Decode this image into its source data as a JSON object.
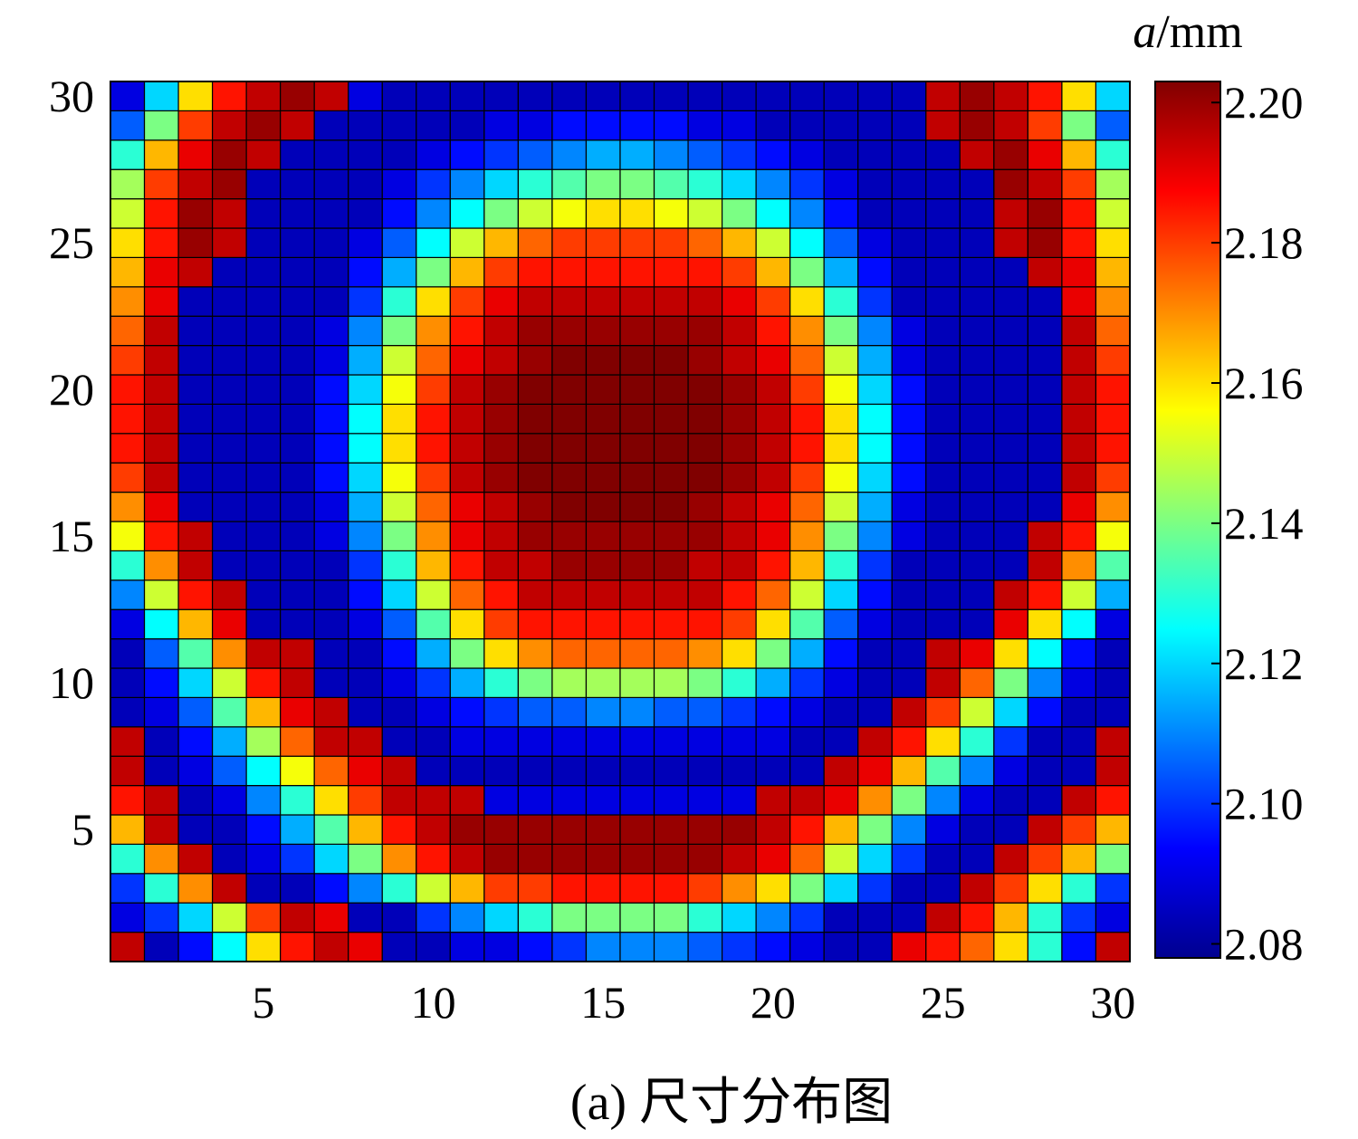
{
  "chart_data": {
    "type": "heatmap",
    "title": "",
    "caption": "(a) 尺寸分布图",
    "colorbar_label": {
      "symbol": "a",
      "unit": "/mm"
    },
    "grid_size": [
      30,
      30
    ],
    "xlim": [
      0.5,
      30.5
    ],
    "ylim": [
      0.5,
      30.5
    ],
    "x_ticks": [
      5,
      10,
      15,
      20,
      25,
      30
    ],
    "y_ticks": [
      5,
      10,
      15,
      20,
      25,
      30
    ],
    "x_tick_labels": [
      "5",
      "10",
      "15",
      "20",
      "25",
      "30"
    ],
    "y_tick_labels": [
      "5",
      "10",
      "15",
      "20",
      "25",
      "30"
    ],
    "color_range": [
      2.078,
      2.203
    ],
    "colorbar_ticks": [
      2.08,
      2.1,
      2.12,
      2.14,
      2.16,
      2.18,
      2.2
    ],
    "colorbar_tick_labels": [
      "2.08",
      "2.10",
      "2.12",
      "2.14",
      "2.16",
      "2.18",
      "2.20"
    ],
    "colormap": "jet",
    "cell_edges": "#000000",
    "values_note": "",
    "values": [
      [
        2.195,
        2.085,
        2.095,
        2.125,
        2.16,
        2.185,
        2.195,
        2.19,
        2.085,
        2.085,
        2.09,
        2.09,
        2.095,
        2.1,
        2.11,
        2.11,
        2.11,
        2.105,
        2.1,
        2.095,
        2.09,
        2.085,
        2.085,
        2.19,
        2.185,
        2.175,
        2.16,
        2.13,
        2.095,
        2.195
      ],
      [
        2.09,
        2.1,
        2.12,
        2.15,
        2.18,
        2.195,
        2.19,
        2.085,
        2.085,
        2.1,
        2.11,
        2.12,
        2.13,
        2.14,
        2.14,
        2.14,
        2.14,
        2.13,
        2.12,
        2.11,
        2.1,
        2.085,
        2.085,
        2.085,
        2.195,
        2.185,
        2.165,
        2.13,
        2.1,
        2.09
      ],
      [
        2.1,
        2.13,
        2.17,
        2.195,
        2.085,
        2.085,
        2.095,
        2.11,
        2.13,
        2.15,
        2.165,
        2.18,
        2.18,
        2.185,
        2.185,
        2.185,
        2.185,
        2.18,
        2.17,
        2.16,
        2.14,
        2.12,
        2.1,
        2.085,
        2.085,
        2.195,
        2.18,
        2.16,
        2.13,
        2.1
      ],
      [
        2.13,
        2.17,
        2.195,
        2.085,
        2.09,
        2.1,
        2.12,
        2.14,
        2.17,
        2.185,
        2.195,
        2.2,
        2.2,
        2.2,
        2.2,
        2.2,
        2.2,
        2.2,
        2.195,
        2.19,
        2.175,
        2.15,
        2.12,
        2.1,
        2.085,
        2.085,
        2.195,
        2.18,
        2.165,
        2.14
      ],
      [
        2.165,
        2.195,
        2.085,
        2.085,
        2.095,
        2.115,
        2.135,
        2.165,
        2.185,
        2.195,
        2.2,
        2.2,
        2.2,
        2.2,
        2.2,
        2.2,
        2.2,
        2.2,
        2.2,
        2.195,
        2.185,
        2.165,
        2.14,
        2.11,
        2.09,
        2.085,
        2.085,
        2.195,
        2.18,
        2.165
      ],
      [
        2.185,
        2.195,
        2.085,
        2.09,
        2.11,
        2.13,
        2.16,
        2.18,
        2.195,
        2.195,
        2.195,
        2.09,
        2.09,
        2.09,
        2.09,
        2.09,
        2.09,
        2.09,
        2.09,
        2.195,
        2.195,
        2.19,
        2.17,
        2.14,
        2.11,
        2.09,
        2.085,
        2.085,
        2.195,
        2.185
      ],
      [
        2.195,
        2.085,
        2.09,
        2.105,
        2.125,
        2.155,
        2.175,
        2.19,
        2.195,
        2.085,
        2.085,
        2.085,
        2.085,
        2.085,
        2.085,
        2.085,
        2.085,
        2.085,
        2.085,
        2.085,
        2.085,
        2.195,
        2.19,
        2.165,
        2.135,
        2.11,
        2.09,
        2.085,
        2.085,
        2.195
      ],
      [
        2.195,
        2.085,
        2.095,
        2.115,
        2.145,
        2.175,
        2.195,
        2.195,
        2.085,
        2.085,
        2.09,
        2.09,
        2.09,
        2.09,
        2.09,
        2.09,
        2.09,
        2.09,
        2.09,
        2.09,
        2.085,
        2.085,
        2.195,
        2.185,
        2.16,
        2.13,
        2.1,
        2.085,
        2.085,
        2.195
      ],
      [
        2.085,
        2.09,
        2.105,
        2.135,
        2.165,
        2.19,
        2.195,
        2.085,
        2.085,
        2.09,
        2.095,
        2.1,
        2.105,
        2.105,
        2.11,
        2.11,
        2.105,
        2.105,
        2.1,
        2.095,
        2.09,
        2.085,
        2.085,
        2.195,
        2.18,
        2.15,
        2.12,
        2.095,
        2.085,
        2.085
      ],
      [
        2.085,
        2.095,
        2.12,
        2.15,
        2.185,
        2.195,
        2.085,
        2.085,
        2.09,
        2.1,
        2.115,
        2.13,
        2.14,
        2.145,
        2.145,
        2.145,
        2.145,
        2.14,
        2.13,
        2.115,
        2.1,
        2.09,
        2.085,
        2.085,
        2.195,
        2.175,
        2.14,
        2.11,
        2.09,
        2.085
      ],
      [
        2.085,
        2.105,
        2.135,
        2.17,
        2.195,
        2.195,
        2.085,
        2.085,
        2.095,
        2.115,
        2.14,
        2.16,
        2.17,
        2.175,
        2.175,
        2.175,
        2.175,
        2.17,
        2.16,
        2.14,
        2.115,
        2.095,
        2.085,
        2.085,
        2.195,
        2.19,
        2.16,
        2.125,
        2.095,
        2.085
      ],
      [
        2.09,
        2.125,
        2.165,
        2.19,
        2.085,
        2.085,
        2.085,
        2.09,
        2.105,
        2.135,
        2.16,
        2.18,
        2.185,
        2.185,
        2.185,
        2.185,
        2.185,
        2.185,
        2.18,
        2.16,
        2.135,
        2.105,
        2.09,
        2.085,
        2.085,
        2.085,
        2.19,
        2.16,
        2.125,
        2.09
      ],
      [
        2.11,
        2.15,
        2.185,
        2.195,
        2.085,
        2.085,
        2.085,
        2.095,
        2.12,
        2.15,
        2.175,
        2.185,
        2.195,
        2.195,
        2.195,
        2.195,
        2.195,
        2.195,
        2.185,
        2.175,
        2.15,
        2.12,
        2.095,
        2.085,
        2.085,
        2.085,
        2.195,
        2.185,
        2.15,
        2.115
      ],
      [
        2.13,
        2.17,
        2.195,
        2.085,
        2.085,
        2.085,
        2.085,
        2.1,
        2.13,
        2.165,
        2.185,
        2.195,
        2.195,
        2.2,
        2.2,
        2.2,
        2.2,
        2.195,
        2.195,
        2.185,
        2.165,
        2.13,
        2.1,
        2.085,
        2.085,
        2.085,
        2.085,
        2.195,
        2.17,
        2.135
      ],
      [
        2.155,
        2.185,
        2.195,
        2.085,
        2.085,
        2.085,
        2.09,
        2.11,
        2.14,
        2.17,
        2.19,
        2.195,
        2.2,
        2.2,
        2.2,
        2.2,
        2.2,
        2.2,
        2.195,
        2.19,
        2.17,
        2.14,
        2.11,
        2.09,
        2.085,
        2.085,
        2.085,
        2.195,
        2.185,
        2.155
      ],
      [
        2.17,
        2.19,
        2.085,
        2.085,
        2.085,
        2.085,
        2.09,
        2.115,
        2.15,
        2.175,
        2.19,
        2.195,
        2.2,
        2.203,
        2.203,
        2.203,
        2.203,
        2.2,
        2.195,
        2.19,
        2.175,
        2.15,
        2.115,
        2.09,
        2.085,
        2.085,
        2.085,
        2.085,
        2.19,
        2.17
      ],
      [
        2.18,
        2.195,
        2.085,
        2.085,
        2.085,
        2.085,
        2.095,
        2.12,
        2.155,
        2.18,
        2.195,
        2.2,
        2.203,
        2.203,
        2.203,
        2.203,
        2.203,
        2.203,
        2.2,
        2.195,
        2.18,
        2.155,
        2.12,
        2.095,
        2.085,
        2.085,
        2.085,
        2.085,
        2.195,
        2.18
      ],
      [
        2.185,
        2.195,
        2.085,
        2.085,
        2.085,
        2.085,
        2.095,
        2.125,
        2.16,
        2.185,
        2.195,
        2.2,
        2.203,
        2.203,
        2.203,
        2.203,
        2.203,
        2.203,
        2.2,
        2.195,
        2.185,
        2.16,
        2.125,
        2.095,
        2.085,
        2.085,
        2.085,
        2.085,
        2.195,
        2.185
      ],
      [
        2.185,
        2.195,
        2.085,
        2.085,
        2.085,
        2.085,
        2.095,
        2.125,
        2.16,
        2.185,
        2.195,
        2.2,
        2.203,
        2.203,
        2.203,
        2.203,
        2.203,
        2.203,
        2.2,
        2.195,
        2.185,
        2.16,
        2.125,
        2.095,
        2.085,
        2.085,
        2.085,
        2.085,
        2.195,
        2.185
      ],
      [
        2.185,
        2.195,
        2.085,
        2.085,
        2.085,
        2.085,
        2.095,
        2.12,
        2.155,
        2.18,
        2.195,
        2.2,
        2.203,
        2.203,
        2.203,
        2.203,
        2.203,
        2.203,
        2.2,
        2.195,
        2.18,
        2.155,
        2.12,
        2.095,
        2.085,
        2.085,
        2.085,
        2.085,
        2.195,
        2.185
      ],
      [
        2.18,
        2.195,
        2.085,
        2.085,
        2.085,
        2.085,
        2.09,
        2.115,
        2.15,
        2.175,
        2.19,
        2.195,
        2.2,
        2.203,
        2.203,
        2.203,
        2.203,
        2.2,
        2.195,
        2.19,
        2.175,
        2.15,
        2.115,
        2.09,
        2.085,
        2.085,
        2.085,
        2.085,
        2.195,
        2.18
      ],
      [
        2.175,
        2.195,
        2.085,
        2.085,
        2.085,
        2.085,
        2.09,
        2.11,
        2.14,
        2.17,
        2.185,
        2.195,
        2.2,
        2.2,
        2.2,
        2.2,
        2.2,
        2.2,
        2.195,
        2.185,
        2.17,
        2.14,
        2.11,
        2.09,
        2.085,
        2.085,
        2.085,
        2.085,
        2.195,
        2.175
      ],
      [
        2.17,
        2.19,
        2.085,
        2.085,
        2.085,
        2.085,
        2.085,
        2.1,
        2.13,
        2.16,
        2.18,
        2.19,
        2.195,
        2.195,
        2.195,
        2.195,
        2.195,
        2.195,
        2.19,
        2.18,
        2.16,
        2.13,
        2.1,
        2.085,
        2.085,
        2.085,
        2.085,
        2.085,
        2.19,
        2.17
      ],
      [
        2.165,
        2.19,
        2.195,
        2.085,
        2.085,
        2.085,
        2.085,
        2.095,
        2.115,
        2.14,
        2.165,
        2.18,
        2.185,
        2.185,
        2.185,
        2.185,
        2.185,
        2.185,
        2.18,
        2.165,
        2.14,
        2.115,
        2.095,
        2.085,
        2.085,
        2.085,
        2.085,
        2.195,
        2.19,
        2.165
      ],
      [
        2.16,
        2.185,
        2.2,
        2.195,
        2.085,
        2.085,
        2.085,
        2.09,
        2.105,
        2.125,
        2.15,
        2.165,
        2.175,
        2.18,
        2.18,
        2.18,
        2.18,
        2.175,
        2.165,
        2.15,
        2.125,
        2.105,
        2.09,
        2.085,
        2.085,
        2.085,
        2.195,
        2.2,
        2.185,
        2.16
      ],
      [
        2.15,
        2.185,
        2.2,
        2.195,
        2.085,
        2.085,
        2.085,
        2.085,
        2.095,
        2.11,
        2.125,
        2.14,
        2.15,
        2.155,
        2.16,
        2.16,
        2.155,
        2.15,
        2.14,
        2.125,
        2.11,
        2.095,
        2.085,
        2.085,
        2.085,
        2.085,
        2.195,
        2.2,
        2.185,
        2.15
      ],
      [
        2.145,
        2.18,
        2.195,
        2.2,
        2.085,
        2.085,
        2.085,
        2.085,
        2.09,
        2.1,
        2.11,
        2.12,
        2.13,
        2.135,
        2.14,
        2.14,
        2.135,
        2.13,
        2.12,
        2.11,
        2.1,
        2.09,
        2.085,
        2.085,
        2.085,
        2.085,
        2.2,
        2.195,
        2.18,
        2.145
      ],
      [
        2.13,
        2.165,
        2.19,
        2.2,
        2.195,
        2.085,
        2.085,
        2.085,
        2.085,
        2.09,
        2.095,
        2.1,
        2.105,
        2.11,
        2.115,
        2.115,
        2.11,
        2.105,
        2.1,
        2.095,
        2.09,
        2.085,
        2.085,
        2.085,
        2.085,
        2.195,
        2.2,
        2.19,
        2.165,
        2.13
      ],
      [
        2.105,
        2.14,
        2.18,
        2.195,
        2.2,
        2.195,
        2.085,
        2.085,
        2.085,
        2.085,
        2.085,
        2.09,
        2.09,
        2.095,
        2.095,
        2.095,
        2.095,
        2.09,
        2.09,
        2.085,
        2.085,
        2.085,
        2.085,
        2.085,
        2.195,
        2.2,
        2.195,
        2.18,
        2.14,
        2.105
      ],
      [
        2.09,
        2.12,
        2.16,
        2.185,
        2.195,
        2.2,
        2.195,
        2.09,
        2.085,
        2.085,
        2.085,
        2.085,
        2.085,
        2.085,
        2.085,
        2.085,
        2.085,
        2.085,
        2.085,
        2.085,
        2.085,
        2.085,
        2.085,
        2.085,
        2.195,
        2.2,
        2.195,
        2.185,
        2.16,
        2.12
      ]
    ]
  }
}
